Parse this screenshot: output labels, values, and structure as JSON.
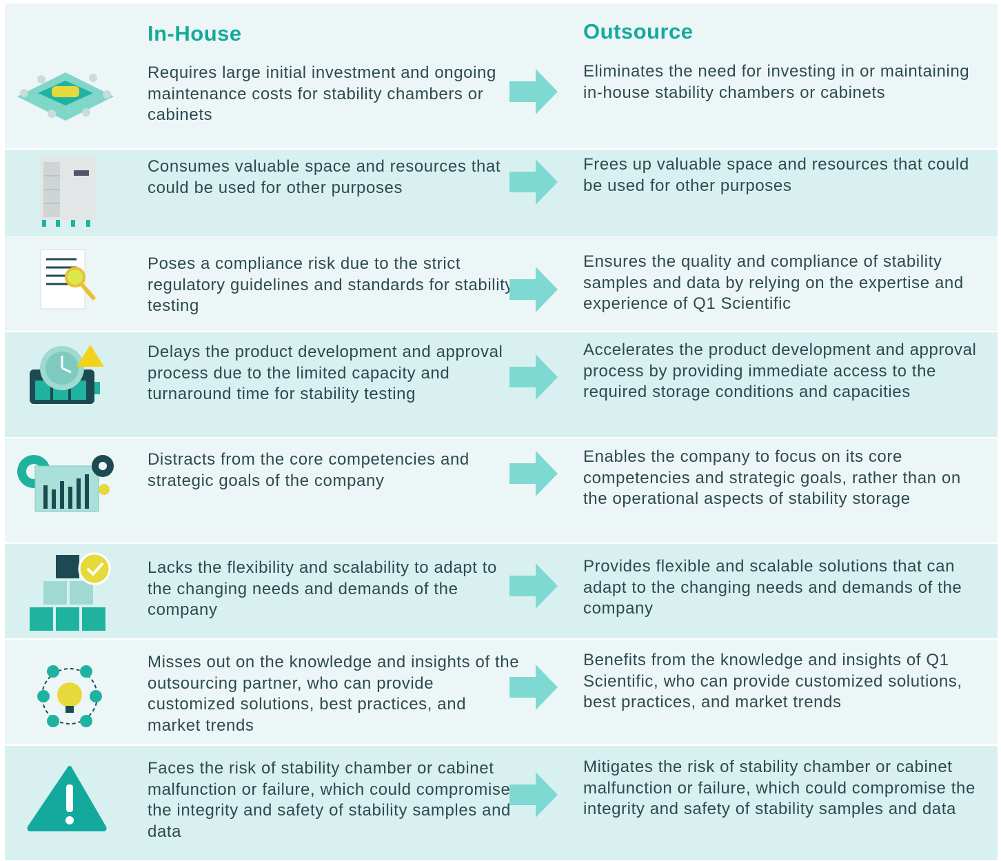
{
  "headers": {
    "in_house": "In-House",
    "outsource": "Outsource"
  },
  "rows": [
    {
      "in_house": "Requires large initial investment and ongoing maintenance costs for stability chambers or cabinets",
      "outsource": "Eliminates the need for investing in or maintaining in-house stability chambers or cabinets"
    },
    {
      "in_house": "Consumes valuable space and resources that could be used for other purposes",
      "outsource": "Frees up valuable space and resources that could be used for other purposes"
    },
    {
      "in_house": "Poses a compliance risk due to the strict regulatory guidelines and standards for stability testing",
      "outsource": "Ensures the quality and compliance of stability samples and data by relying on the expertise and experience of Q1 Scientific"
    },
    {
      "in_house": "Delays the product development and approval process due to the limited capacity and turnaround time for stability testing",
      "outsource": "Accelerates the product development and approval process by providing immediate access to the required storage conditions and capacities"
    },
    {
      "in_house": "Distracts from the core competencies and strategic goals of the company",
      "outsource": "Enables the company to focus on its core competencies and strategic goals, rather than on the operational aspects of stability storage"
    },
    {
      "in_house": "Lacks the flexibility and scalability to adapt to the changing needs and demands of the company",
      "outsource": "Provides flexible and scalable solutions that can adapt to the changing needs and demands of the company"
    },
    {
      "in_house": "Misses out on the knowledge and insights of the outsourcing partner, who can provide customized solutions, best practices, and market trends",
      "outsource": "Benefits from the knowledge and insights of Q1 Scientific, who can provide customized solutions, best practices, and market trends"
    },
    {
      "in_house": "Faces the risk of stability chamber or cabinet malfunction or failure, which could compromise the integrity and safety of stability samples and data",
      "outsource": "Mitigates the risk of stability chamber or cabinet malfunction or failure, which could compromise the integrity and safety of stability samples and data"
    }
  ]
}
